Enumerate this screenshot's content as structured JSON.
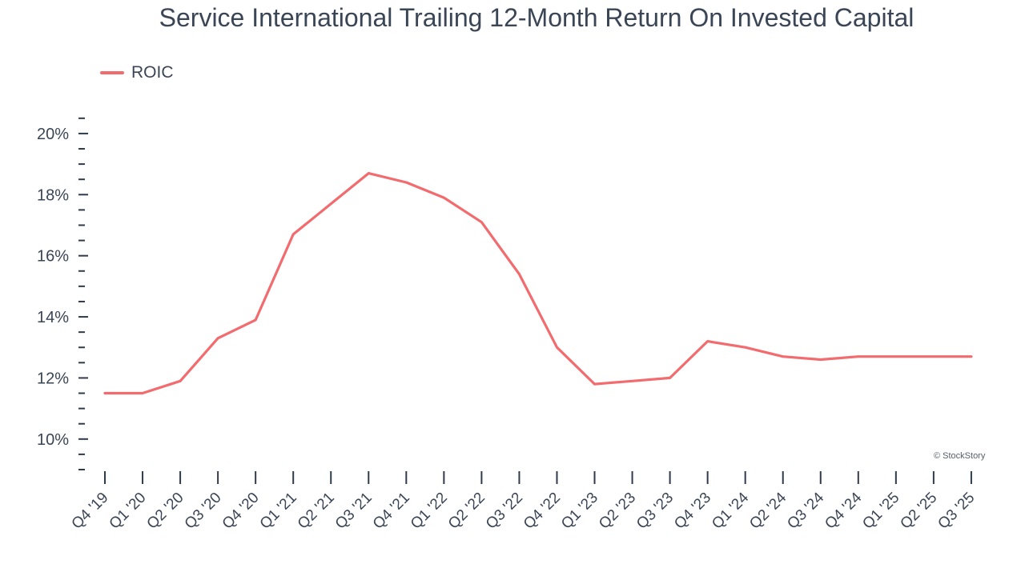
{
  "chart_data": {
    "type": "line",
    "title": "Service International Trailing 12-Month Return On Invested Capital",
    "xlabel": "",
    "ylabel": "",
    "categories": [
      "Q4 '19",
      "Q1 '20",
      "Q2 '20",
      "Q3 '20",
      "Q4 '20",
      "Q1 '21",
      "Q2 '21",
      "Q3 '21",
      "Q4 '21",
      "Q1 '22",
      "Q2 '22",
      "Q3 '22",
      "Q4 '22",
      "Q1 '23",
      "Q2 '23",
      "Q3 '23",
      "Q4 '23",
      "Q1 '24",
      "Q2 '24",
      "Q3 '24",
      "Q4 '24",
      "Q1 '25",
      "Q2 '25",
      "Q3 '25"
    ],
    "series": [
      {
        "name": "ROIC",
        "color": "#f26b6e",
        "values": [
          11.5,
          11.5,
          11.9,
          13.3,
          13.9,
          16.7,
          17.7,
          18.7,
          18.4,
          17.9,
          17.1,
          15.4,
          13.0,
          11.8,
          11.9,
          12.0,
          13.2,
          13.0,
          12.7,
          12.6,
          12.7,
          12.7,
          12.7,
          12.7
        ]
      }
    ],
    "yticks": [
      10,
      12,
      14,
      16,
      18,
      20
    ],
    "ytick_labels": [
      "10%",
      "12%",
      "14%",
      "16%",
      "18%",
      "20%"
    ],
    "ylim": [
      9.0,
      20.6
    ],
    "grid": false,
    "legend_position": "top-left"
  },
  "credit": "© StockStory"
}
